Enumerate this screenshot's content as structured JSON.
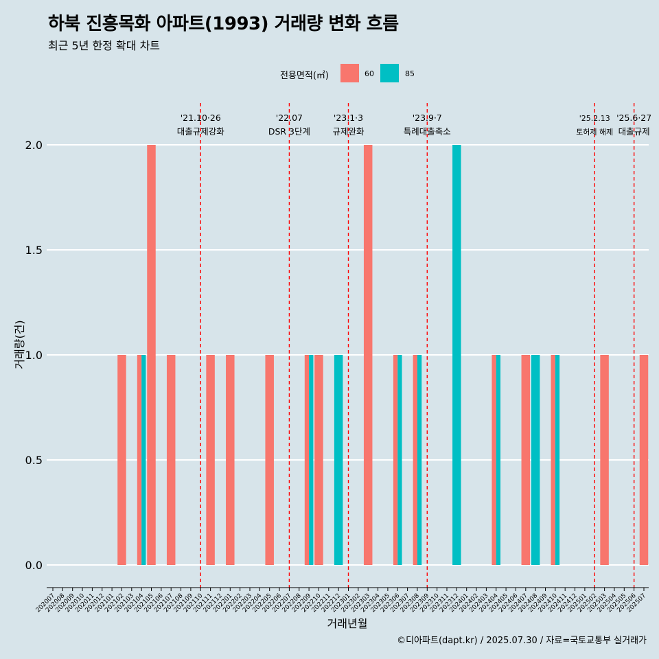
{
  "title": "하북 진흥목화 아파트(1993) 거래량 변화 흐름",
  "subtitle": "최근 5년 한정 확대 차트",
  "caption": "©디아파트(dapt.kr) / 2025.07.30 / 자료=국토교통부 실거래가",
  "legend": {
    "title": "전용면적(㎡)",
    "items": [
      {
        "label": "60",
        "color": "#f8766d"
      },
      {
        "label": "85",
        "color": "#00bfc4"
      }
    ]
  },
  "chart_data": {
    "type": "bar",
    "title": "하북 진흥목화 아파트(1993) 거래량 변화 흐름",
    "subtitle": "최근 5년 한정 확대 차트",
    "xlabel": "거래년월",
    "ylabel": "거래량(건)",
    "ylim": [
      -0.07,
      2.21
    ],
    "yticks": [
      0.0,
      0.5,
      1.0,
      1.5,
      2.0
    ],
    "ytick_labels": [
      "0.0",
      "0.5",
      "1.0",
      "1.5",
      "2.0"
    ],
    "grid": true,
    "legend_position": "top",
    "categories": [
      "202007",
      "202008",
      "202009",
      "202010",
      "202011",
      "202012",
      "202101",
      "202102",
      "202103",
      "202104",
      "202105",
      "202106",
      "202107",
      "202108",
      "202109",
      "202110",
      "202111",
      "202112",
      "202201",
      "202202",
      "202203",
      "202204",
      "202205",
      "202206",
      "202207",
      "202208",
      "202209",
      "202210",
      "202211",
      "202212",
      "202301",
      "202302",
      "202303",
      "202304",
      "202305",
      "202306",
      "202307",
      "202308",
      "202309",
      "202310",
      "202311",
      "202312",
      "202401",
      "202402",
      "202403",
      "202404",
      "202405",
      "202406",
      "202407",
      "202408",
      "202409",
      "202410",
      "202411",
      "202412",
      "202501",
      "202502",
      "202503",
      "202504",
      "202505",
      "202506",
      "202507"
    ],
    "series": [
      {
        "name": "60",
        "color": "#f8766d",
        "points": [
          {
            "x": "202102",
            "y": 1,
            "dodge": false
          },
          {
            "x": "202104",
            "y": 1,
            "dodge": true
          },
          {
            "x": "202105",
            "y": 2,
            "dodge": false
          },
          {
            "x": "202107",
            "y": 1,
            "dodge": false
          },
          {
            "x": "202111",
            "y": 1,
            "dodge": false
          },
          {
            "x": "202201",
            "y": 1,
            "dodge": false
          },
          {
            "x": "202205",
            "y": 1,
            "dodge": false
          },
          {
            "x": "202209",
            "y": 1,
            "dodge": true
          },
          {
            "x": "202210",
            "y": 1,
            "dodge": false
          },
          {
            "x": "202303",
            "y": 2,
            "dodge": false
          },
          {
            "x": "202306",
            "y": 1,
            "dodge": true
          },
          {
            "x": "202308",
            "y": 1,
            "dodge": true
          },
          {
            "x": "202404",
            "y": 1,
            "dodge": true
          },
          {
            "x": "202407",
            "y": 1,
            "dodge": false
          },
          {
            "x": "202410",
            "y": 1,
            "dodge": true
          },
          {
            "x": "202503",
            "y": 1,
            "dodge": false
          },
          {
            "x": "202507",
            "y": 1,
            "dodge": false
          }
        ]
      },
      {
        "name": "85",
        "color": "#00bfc4",
        "points": [
          {
            "x": "202104",
            "y": 1,
            "dodge": true
          },
          {
            "x": "202209",
            "y": 1,
            "dodge": true
          },
          {
            "x": "202212",
            "y": 1,
            "dodge": false
          },
          {
            "x": "202306",
            "y": 1,
            "dodge": true
          },
          {
            "x": "202308",
            "y": 1,
            "dodge": true
          },
          {
            "x": "202312",
            "y": 2,
            "dodge": false
          },
          {
            "x": "202404",
            "y": 1,
            "dodge": true
          },
          {
            "x": "202408",
            "y": 1,
            "dodge": false
          },
          {
            "x": "202410",
            "y": 1,
            "dodge": true
          }
        ]
      }
    ],
    "events": [
      {
        "x": "202110",
        "date": "'21.10·26",
        "label": "대출규제강화"
      },
      {
        "x": "202207",
        "date": "'22.07",
        "label": "DSR 3단계"
      },
      {
        "x": "202301",
        "date": "'23.1·3",
        "label": "규제완화"
      },
      {
        "x": "202309",
        "date": "'23.9·7",
        "label": "특례대출축소"
      },
      {
        "x": "202502",
        "date": "'25.2.13",
        "label": "토허제 해제"
      },
      {
        "x": "202506",
        "date": "'25.6·27",
        "label": "대출규제"
      }
    ],
    "event_line_color": "#ff0000"
  }
}
